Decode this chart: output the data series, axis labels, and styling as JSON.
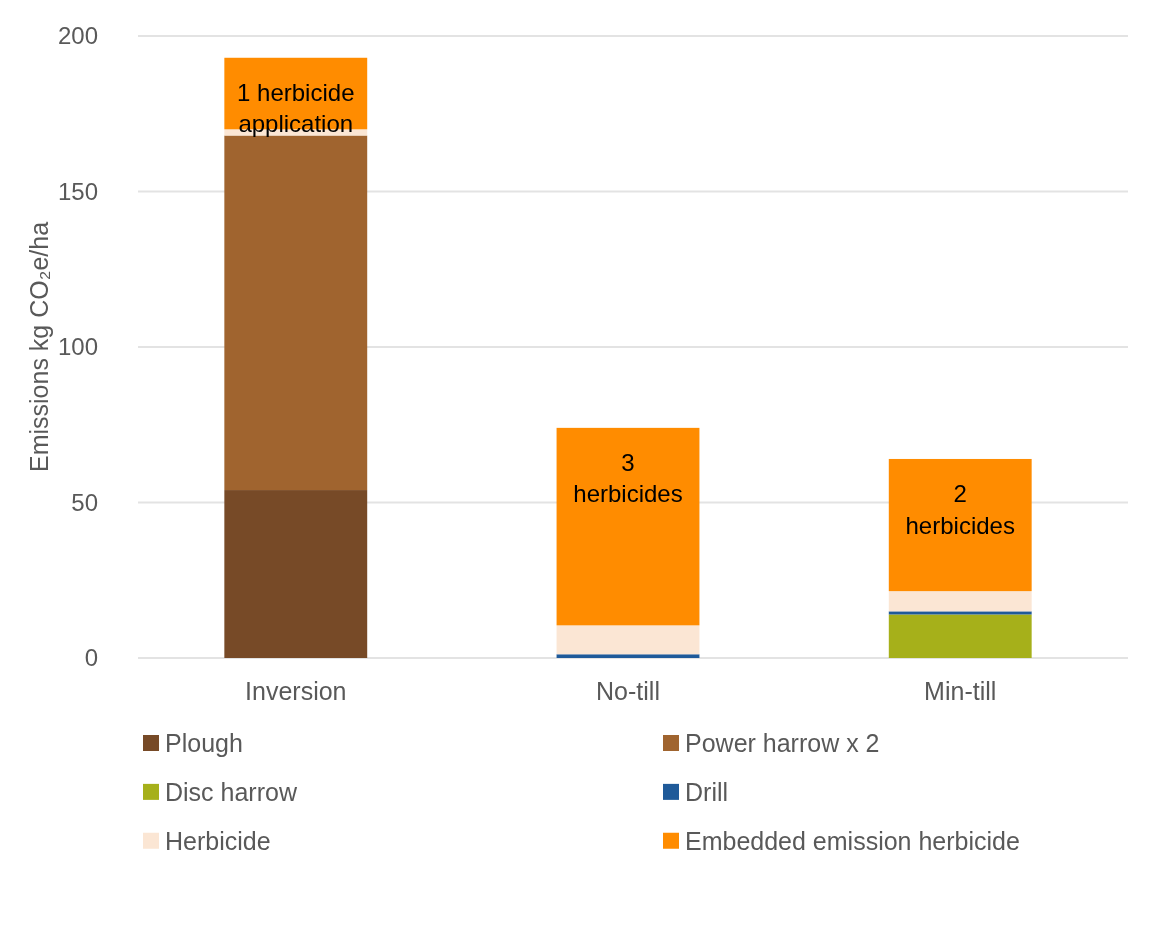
{
  "chart_data": {
    "type": "bar",
    "stacked": true,
    "ylabel": "Emissions kg CO₂e/ha",
    "categories": [
      "Inversion",
      "No-till",
      "Min-till"
    ],
    "series": [
      {
        "name": "Plough",
        "color": "#774a27",
        "values": [
          54,
          0,
          0
        ]
      },
      {
        "name": "Power harrow x 2",
        "color": "#a0642f",
        "values": [
          114,
          0,
          0
        ]
      },
      {
        "name": "Disc harrow",
        "color": "#a6b01a",
        "values": [
          0,
          0,
          14
        ]
      },
      {
        "name": "Drill",
        "color": "#1f5a99",
        "values": [
          0,
          1.2,
          1
        ]
      },
      {
        "name": "Herbicide",
        "color": "#fbe6d4",
        "values": [
          2,
          9.3,
          6.5
        ]
      },
      {
        "name": "Embedded emission herbicide",
        "color": "#ff8c00",
        "values": [
          23,
          63.5,
          42.5
        ]
      }
    ],
    "annotations": [
      "1 herbicide application",
      "3 herbicides",
      "2 herbicides"
    ],
    "ylim": [
      0,
      200
    ],
    "yticks": [
      0,
      50,
      100,
      150,
      200
    ],
    "grid": "y",
    "legend": "bottom"
  }
}
